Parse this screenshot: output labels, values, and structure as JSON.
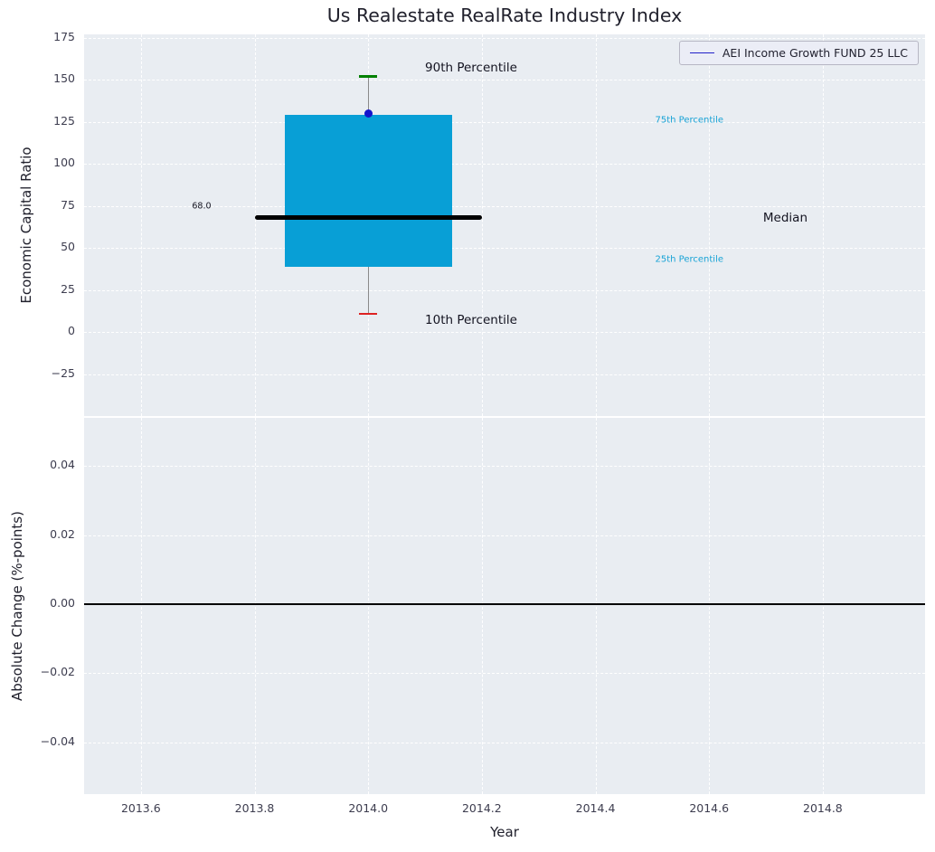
{
  "title": "Us Realestate RealRate Industry Index",
  "legend": {
    "label": "AEI Income Growth FUND 25 LLC",
    "line_color": "#2121c8"
  },
  "colors": {
    "axes_bg": "#e9edf2",
    "grid": "#ffffff",
    "box_fill": "#089fd6",
    "median": "#000000",
    "whisker": "#8a8a8a",
    "cap_90": "#008000",
    "cap_10": "#dd2222",
    "marker": "#1414cc",
    "tick_label": "#3d3d4f",
    "annotation_dark": "#131320",
    "annotation_cyan": "#18a3d6",
    "zero_line": "#000000"
  },
  "chart_data": [
    {
      "type": "box",
      "title": "Us Realestate RealRate Industry Index",
      "ylabel": "Economic Capital Ratio",
      "x": 2014.0,
      "xlim": [
        2013.5,
        2014.98
      ],
      "ylim": [
        -50,
        177
      ],
      "grid": "dashed",
      "legend_position": "upper right",
      "yticks": [
        {
          "value": 175,
          "label": "175"
        },
        {
          "value": 150,
          "label": "150"
        },
        {
          "value": 125,
          "label": "125"
        },
        {
          "value": 100,
          "label": "100"
        },
        {
          "value": 75,
          "label": "75"
        },
        {
          "value": 50,
          "label": "50"
        },
        {
          "value": 25,
          "label": "25"
        },
        {
          "value": 0,
          "label": "0"
        },
        {
          "value": -25,
          "label": "−25"
        }
      ],
      "box": {
        "p10": 11,
        "p25": 39,
        "median": 68,
        "p75": 129,
        "p90": 152,
        "fund_value": 130,
        "median_label": "68.0",
        "box_halfwidth_years": 0.147,
        "median_halfwidth_years": 0.2,
        "cap_halfwidth_years": 0.016
      },
      "annotations": [
        {
          "text": "90th Percentile",
          "x": 2014.1,
          "y": 157,
          "style": "large-dark"
        },
        {
          "text": "10th Percentile",
          "x": 2014.1,
          "y": 7,
          "style": "large-dark"
        },
        {
          "text": "75th Percentile",
          "x": 2014.505,
          "y": 126,
          "style": "small-cyan"
        },
        {
          "text": "25th Percentile",
          "x": 2014.505,
          "y": 43,
          "style": "small-cyan"
        },
        {
          "text": "Median",
          "x": 2014.695,
          "y": 68,
          "style": "large-dark"
        },
        {
          "text": "68.0",
          "x": 2013.69,
          "y": 75,
          "style": "small-dark"
        }
      ]
    },
    {
      "type": "line",
      "ylabel": "Absolute Change (%-points)",
      "xlabel": "Year",
      "xlim": [
        2013.5,
        2014.98
      ],
      "ylim": [
        -0.055,
        0.054
      ],
      "zero_line": 0,
      "grid": "dashed",
      "yticks": [
        {
          "value": 0.04,
          "label": "0.04"
        },
        {
          "value": 0.02,
          "label": "0.02"
        },
        {
          "value": 0.0,
          "label": "0.00"
        },
        {
          "value": -0.02,
          "label": "−0.02"
        },
        {
          "value": -0.04,
          "label": "−0.04"
        }
      ],
      "xticks": [
        {
          "value": 2013.6,
          "label": "2013.6"
        },
        {
          "value": 2013.8,
          "label": "2013.8"
        },
        {
          "value": 2014.0,
          "label": "2014.0"
        },
        {
          "value": 2014.2,
          "label": "2014.2"
        },
        {
          "value": 2014.4,
          "label": "2014.4"
        },
        {
          "value": 2014.6,
          "label": "2014.6"
        },
        {
          "value": 2014.8,
          "label": "2014.8"
        }
      ]
    }
  ]
}
